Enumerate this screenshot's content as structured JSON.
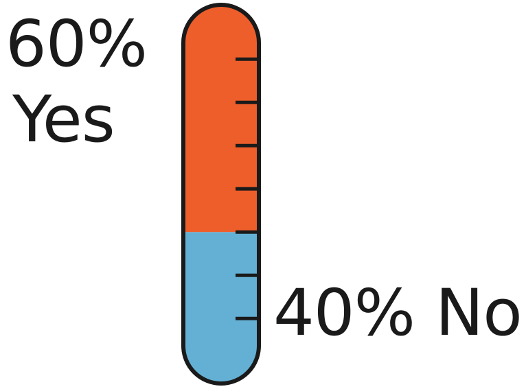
{
  "chart_data": {
    "type": "bar",
    "title": "",
    "categories": [
      "Yes",
      "No"
    ],
    "values": [
      60,
      40
    ],
    "unit": "%",
    "ylim": [
      0,
      100
    ],
    "labels": {
      "yes_percent": "60%",
      "yes_text": "Yes",
      "no_percent": "40%",
      "no_text": "No"
    },
    "colors": {
      "yes": "#EE5E2B",
      "no": "#63B0D4",
      "outline": "#1A1A1A"
    },
    "tick_count": 7
  }
}
